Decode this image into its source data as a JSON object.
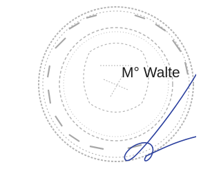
{
  "signature_text": "M° Walte"
}
